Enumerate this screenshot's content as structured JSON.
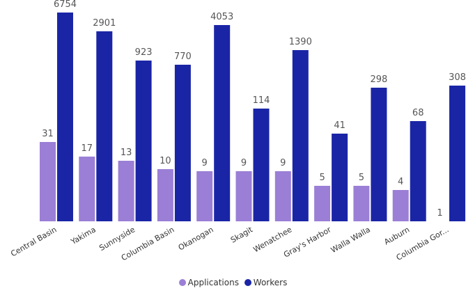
{
  "chart_data": {
    "type": "bar",
    "categories": [
      "Central Basin",
      "Yakima",
      "Sunnyside",
      "Columbia Basin",
      "Okanogan",
      "Skagit",
      "Wenatchee",
      "Gray's Harbor",
      "Walla Walla",
      "Auburn",
      "Columbia Gor..."
    ],
    "series": [
      {
        "name": "Applications",
        "color": "#9b7fd6",
        "values": [
          31,
          17,
          13,
          10,
          9,
          9,
          9,
          5,
          5,
          4,
          1
        ]
      },
      {
        "name": "Workers",
        "color": "#1a25a6",
        "values": [
          6754,
          2901,
          923,
          770,
          4053,
          114,
          1390,
          41,
          298,
          68,
          308
        ]
      }
    ],
    "bar_height_fraction": {
      "Applications": [
        0.38,
        0.31,
        0.29,
        0.25,
        0.24,
        0.24,
        0.24,
        0.17,
        0.17,
        0.15,
        null
      ],
      "Workers": [
        1.0,
        0.91,
        0.77,
        0.75,
        0.94,
        0.54,
        0.82,
        0.42,
        0.64,
        0.48,
        0.65
      ]
    },
    "legend_position": "bottom",
    "grid": false,
    "data_labels": true,
    "y_axis_visible": false
  }
}
